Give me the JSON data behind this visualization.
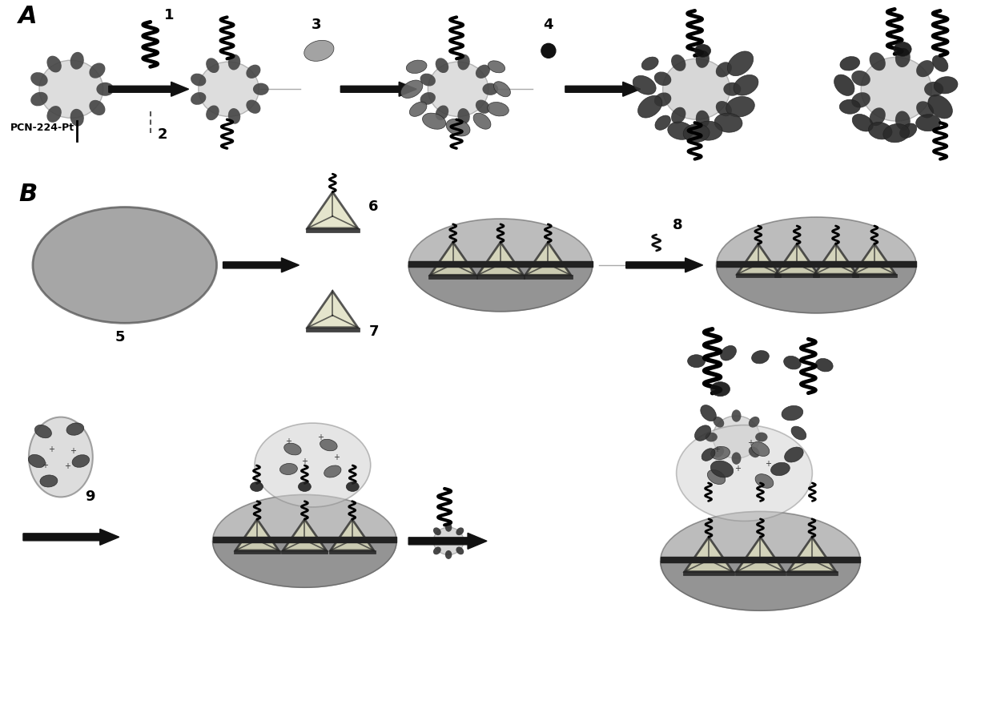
{
  "bg_color": "#ffffff",
  "label_A": "A",
  "label_B": "B",
  "label_PCN": "PCN-224-Pt",
  "arrow_color": "#111111",
  "core_color": "#d8d8d8",
  "dot_color": "#444444",
  "blob_color_light": "#888888",
  "blob_color_dark": "#333333",
  "blob_color_black": "#111111",
  "electrode_fill": "#999999",
  "electrode_dark": "#555555",
  "tri_fill": "#ccccaa",
  "tri_edge": "#222222",
  "cell_fill": "#cccccc",
  "line_color": "#888888",
  "wavy_color": "#111111",
  "wavy_bold_color": "#000000"
}
